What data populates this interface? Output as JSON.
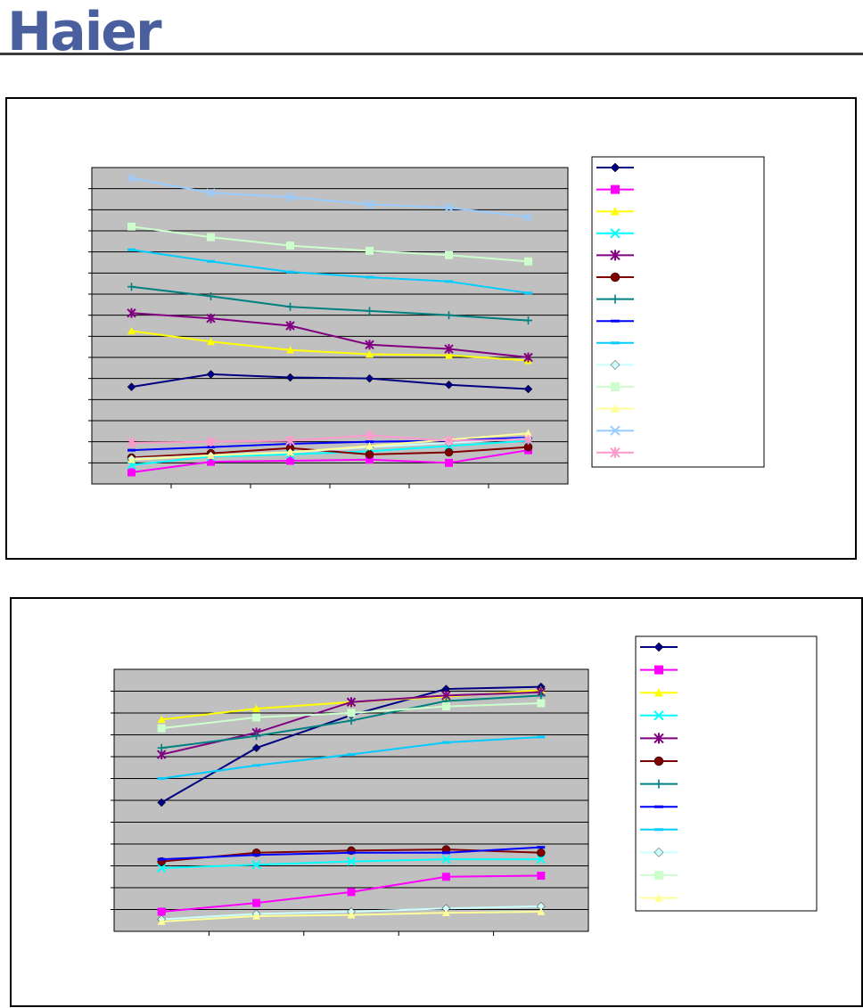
{
  "brand": {
    "logo_text": "Haier",
    "color": "#4a5f9e"
  },
  "colors": {
    "plot_bg": "#c0c0c0",
    "grid": "#000000",
    "rule": "#3a3a3a"
  },
  "chart_data": [
    {
      "type": "line",
      "title": "",
      "xlabel": "",
      "ylabel": "",
      "grid": true,
      "legend_position": "right",
      "ylim": [
        0,
        15
      ],
      "x": [
        1,
        2,
        3,
        4,
        5,
        6
      ],
      "series": [
        {
          "color": "#000080",
          "marker": "diamond",
          "values": [
            4.6,
            5.2,
            5.05,
            5.0,
            4.7,
            4.5
          ]
        },
        {
          "color": "#ff00ff",
          "marker": "square",
          "values": [
            0.55,
            1.05,
            1.1,
            1.15,
            1.0,
            1.6
          ]
        },
        {
          "color": "#ffff00",
          "marker": "triangle",
          "values": [
            7.25,
            6.75,
            6.35,
            6.15,
            6.1,
            5.85
          ]
        },
        {
          "color": "#00ffff",
          "marker": "x",
          "values": [
            0.9,
            1.3,
            1.4,
            1.55,
            1.8,
            2.05
          ]
        },
        {
          "color": "#800080",
          "marker": "star",
          "values": [
            8.1,
            7.85,
            7.5,
            6.6,
            6.4,
            6.0
          ]
        },
        {
          "color": "#800000",
          "marker": "circle",
          "values": [
            1.25,
            1.45,
            1.7,
            1.4,
            1.5,
            1.75
          ]
        },
        {
          "color": "#008080",
          "marker": "plus",
          "values": [
            9.35,
            8.9,
            8.4,
            8.2,
            8.0,
            7.75
          ]
        },
        {
          "color": "#0000ff",
          "marker": "dash",
          "values": [
            1.6,
            1.75,
            1.9,
            2.0,
            2.05,
            2.2
          ]
        },
        {
          "color": "#00ccff",
          "marker": "dash",
          "values": [
            11.1,
            10.55,
            10.05,
            9.8,
            9.6,
            9.05
          ]
        },
        {
          "color": "#ccffff",
          "marker": "diamond",
          "values": [
            1.2,
            1.35,
            1.5,
            1.75,
            1.95,
            2.15
          ]
        },
        {
          "color": "#ccffcc",
          "marker": "square",
          "values": [
            12.2,
            11.7,
            11.3,
            11.05,
            10.85,
            10.55
          ]
        },
        {
          "color": "#ffff99",
          "marker": "triangle",
          "values": [
            1.15,
            1.35,
            1.5,
            1.8,
            2.1,
            2.4
          ]
        },
        {
          "color": "#99ccff",
          "marker": "x",
          "values": [
            14.5,
            13.8,
            13.6,
            13.25,
            13.1,
            12.65
          ]
        },
        {
          "color": "#ff99cc",
          "marker": "star",
          "values": [
            1.95,
            2.0,
            2.05,
            2.3,
            2.05,
            2.1
          ]
        }
      ]
    },
    {
      "type": "line",
      "title": "",
      "xlabel": "",
      "ylabel": "",
      "grid": true,
      "legend_position": "right",
      "ylim": [
        0,
        12
      ],
      "x": [
        1,
        2,
        3,
        4,
        5
      ],
      "series": [
        {
          "color": "#000080",
          "marker": "diamond",
          "values": [
            5.9,
            8.4,
            9.9,
            11.1,
            11.2
          ]
        },
        {
          "color": "#ff00ff",
          "marker": "square",
          "values": [
            0.9,
            1.3,
            1.8,
            2.5,
            2.55
          ]
        },
        {
          "color": "#ffff00",
          "marker": "triangle",
          "values": [
            9.7,
            10.2,
            10.5,
            10.75,
            11.05
          ]
        },
        {
          "color": "#00ffff",
          "marker": "x",
          "values": [
            2.9,
            3.05,
            3.2,
            3.3,
            3.3
          ]
        },
        {
          "color": "#800080",
          "marker": "star",
          "values": [
            8.1,
            9.1,
            10.5,
            10.8,
            10.95
          ]
        },
        {
          "color": "#800000",
          "marker": "circle",
          "values": [
            3.2,
            3.6,
            3.7,
            3.75,
            3.6
          ]
        },
        {
          "color": "#008080",
          "marker": "plus",
          "values": [
            8.4,
            8.95,
            9.65,
            10.55,
            10.8
          ]
        },
        {
          "color": "#0000ff",
          "marker": "dash",
          "values": [
            3.3,
            3.5,
            3.6,
            3.6,
            3.85
          ]
        },
        {
          "color": "#00ccff",
          "marker": "dash",
          "values": [
            7.0,
            7.6,
            8.1,
            8.65,
            8.9
          ]
        },
        {
          "color": "#ccffff",
          "marker": "diamond",
          "values": [
            0.55,
            0.8,
            0.9,
            1.05,
            1.15
          ]
        },
        {
          "color": "#ccffcc",
          "marker": "square",
          "values": [
            9.3,
            9.8,
            10.0,
            10.3,
            10.45
          ]
        },
        {
          "color": "#ffff99",
          "marker": "triangle",
          "values": [
            0.45,
            0.7,
            0.75,
            0.85,
            0.9
          ]
        }
      ]
    }
  ]
}
